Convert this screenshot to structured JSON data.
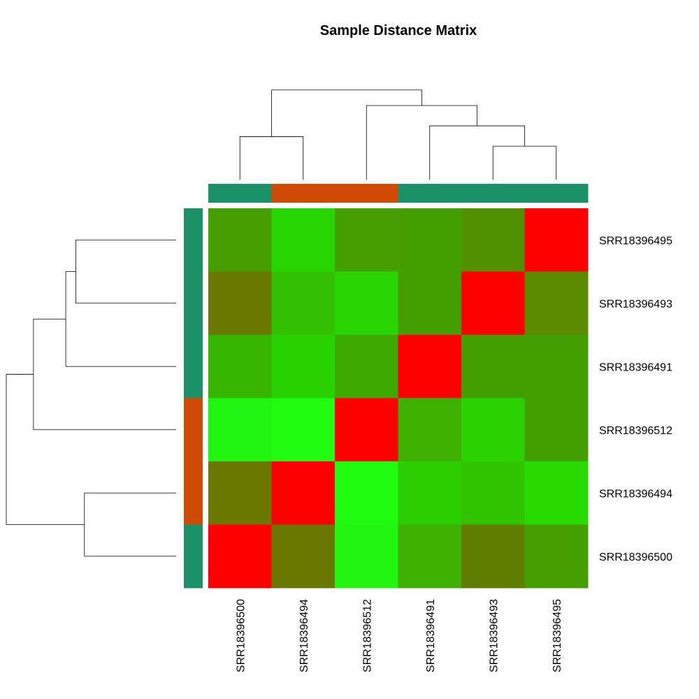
{
  "chart_data": {
    "type": "heatmap",
    "title": "Sample Distance Matrix",
    "columns": [
      "SRR18396500",
      "SRR18396494",
      "SRR18396512",
      "SRR18396491",
      "SRR18396493",
      "SRR18396495"
    ],
    "rows": [
      "SRR18396495",
      "SRR18396493",
      "SRR18396491",
      "SRR18396512",
      "SRR18396494",
      "SRR18396500"
    ],
    "cell_colors": [
      [
        "#469f00",
        "#27d600",
        "#469f00",
        "#439f00",
        "#519100",
        "#ff0000"
      ],
      [
        "#6a7800",
        "#33c000",
        "#29d500",
        "#439f00",
        "#ff0000",
        "#5b8c00"
      ],
      [
        "#37b600",
        "#28d200",
        "#3caa00",
        "#ff0000",
        "#439f00",
        "#439f00"
      ],
      [
        "#1ff50f",
        "#1ffc0f",
        "#ff0000",
        "#3fb000",
        "#29d200",
        "#439f00"
      ],
      [
        "#6a7800",
        "#ff0000",
        "#1ffc0f",
        "#2bce00",
        "#31c400",
        "#28dc00"
      ],
      [
        "#ff0000",
        "#6a7800",
        "#22f50f",
        "#3fb000",
        "#5f7e00",
        "#469f00"
      ]
    ],
    "column_groups": [
      "teal",
      "orange",
      "orange",
      "teal",
      "teal",
      "teal"
    ],
    "row_groups": [
      "teal",
      "teal",
      "teal",
      "orange",
      "orange",
      "teal"
    ],
    "group_colors": {
      "teal": "#1b9168",
      "orange": "#d14a05"
    },
    "column_dendrogram_merges": [
      [
        4,
        5,
        0.28
      ],
      [
        3,
        4,
        0.45
      ],
      [
        2,
        3,
        0.62
      ],
      [
        0,
        1,
        0.36
      ],
      [
        0,
        2,
        0.75
      ]
    ],
    "row_dendrogram_merges": [
      [
        0,
        1,
        0.59
      ],
      [
        0,
        2,
        0.65
      ],
      [
        0,
        3,
        0.84
      ],
      [
        4,
        5,
        0.54
      ],
      [
        0,
        4,
        1.0
      ]
    ],
    "legend": "none"
  }
}
